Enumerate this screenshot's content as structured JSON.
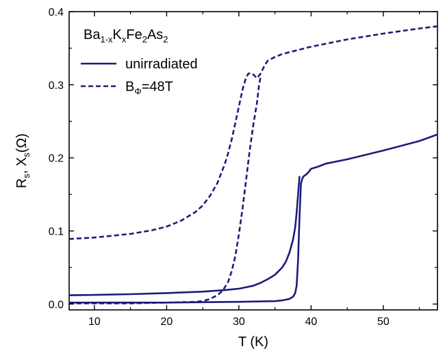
{
  "chart_data": {
    "type": "line",
    "title": "",
    "xlabel": "T  (K)",
    "ylabel": {
      "main": "R",
      "sub1": "s",
      "mid": ", X",
      "sub2": "s",
      "tail": "(Ω)"
    },
    "xlim": [
      6.5,
      57.5
    ],
    "ylim": [
      -0.008,
      0.4
    ],
    "x_ticks": [
      10,
      20,
      30,
      40,
      50
    ],
    "x_tick_labels": [
      "10",
      "20",
      "30",
      "40",
      "50"
    ],
    "y_ticks": [
      0.0,
      0.1,
      0.2,
      0.3,
      0.4
    ],
    "y_tick_labels": [
      "0.0",
      "0.1",
      "0.2",
      "0.3",
      "0.4"
    ],
    "grid": false,
    "legend": {
      "placement": "top-left",
      "title_parts": [
        {
          "t": "Ba",
          "sub": false
        },
        {
          "t": "1-x",
          "sub": true
        },
        {
          "t": "K",
          "sub": false
        },
        {
          "t": "x",
          "sub": true
        },
        {
          "t": "Fe",
          "sub": false
        },
        {
          "t": "2",
          "sub": true
        },
        {
          "t": "As",
          "sub": false
        },
        {
          "t": "2",
          "sub": true
        }
      ],
      "entries": [
        {
          "series": "unirradiated",
          "parts": [
            {
              "t": "unirradiated",
              "sub": false
            }
          ]
        },
        {
          "series": "BΦ=48T",
          "parts": [
            {
              "t": "B",
              "sub": false
            },
            {
              "t": "Φ",
              "sub": true
            },
            {
              "t": "=48T",
              "sub": false
            }
          ]
        }
      ]
    },
    "color": "#1b1b7a",
    "series": [
      {
        "name": "unirradiated",
        "style": "solid",
        "curves": [
          {
            "part": "R_s upper",
            "x": [
              6.5,
              10,
              15,
              20,
              25,
              28,
              30,
              31,
              32,
              33,
              34,
              35,
              36,
              36.5,
              37,
              37.5,
              37.8,
              38.0,
              38.2,
              38.4
            ],
            "y": [
              0.012,
              0.0125,
              0.0135,
              0.015,
              0.017,
              0.019,
              0.021,
              0.023,
              0.025,
              0.029,
              0.034,
              0.04,
              0.05,
              0.058,
              0.07,
              0.088,
              0.105,
              0.125,
              0.15,
              0.175
            ]
          },
          {
            "part": "X_s lower",
            "x": [
              6.5,
              10,
              20,
              30,
              35,
              36,
              37,
              37.5,
              37.8,
              38.0,
              38.2,
              38.4,
              38.6,
              38.8,
              39.0,
              39.3,
              39.6,
              40,
              41,
              42,
              45,
              50,
              55,
              57.5
            ],
            "y": [
              0.002,
              0.002,
              0.002,
              0.003,
              0.004,
              0.005,
              0.007,
              0.01,
              0.015,
              0.025,
              0.06,
              0.12,
              0.165,
              0.172,
              0.175,
              0.177,
              0.18,
              0.185,
              0.188,
              0.192,
              0.198,
              0.21,
              0.223,
              0.232
            ]
          }
        ]
      },
      {
        "name": "BΦ=48T",
        "style": "dashed",
        "curves": [
          {
            "part": "X_s",
            "x": [
              6.5,
              10,
              15,
              18,
              20,
              22,
              24,
              25,
              26,
              27,
              28,
              28.5,
              29,
              29.5,
              30,
              30.5,
              31,
              31.3,
              31.6,
              32,
              32.5,
              33,
              33.5,
              34,
              35,
              36,
              38,
              40,
              45,
              50,
              55,
              57.5
            ],
            "y": [
              0.089,
              0.091,
              0.096,
              0.101,
              0.106,
              0.114,
              0.126,
              0.135,
              0.148,
              0.165,
              0.19,
              0.206,
              0.225,
              0.247,
              0.27,
              0.293,
              0.31,
              0.315,
              0.316,
              0.314,
              0.309,
              0.315,
              0.325,
              0.333,
              0.338,
              0.342,
              0.347,
              0.352,
              0.362,
              0.37,
              0.377,
              0.38
            ]
          },
          {
            "part": "R_s",
            "x": [
              6.5,
              10,
              15,
              20,
              24,
              25,
              26,
              27,
              27.5,
              28,
              28.5,
              29,
              29.5,
              30,
              30.5,
              31,
              31.5,
              32,
              32.5,
              32.8,
              33.0
            ],
            "y": [
              0.001,
              0.001,
              0.001,
              0.002,
              0.003,
              0.004,
              0.007,
              0.012,
              0.016,
              0.022,
              0.03,
              0.045,
              0.065,
              0.095,
              0.13,
              0.17,
              0.21,
              0.245,
              0.275,
              0.3,
              0.31
            ]
          }
        ]
      }
    ]
  }
}
